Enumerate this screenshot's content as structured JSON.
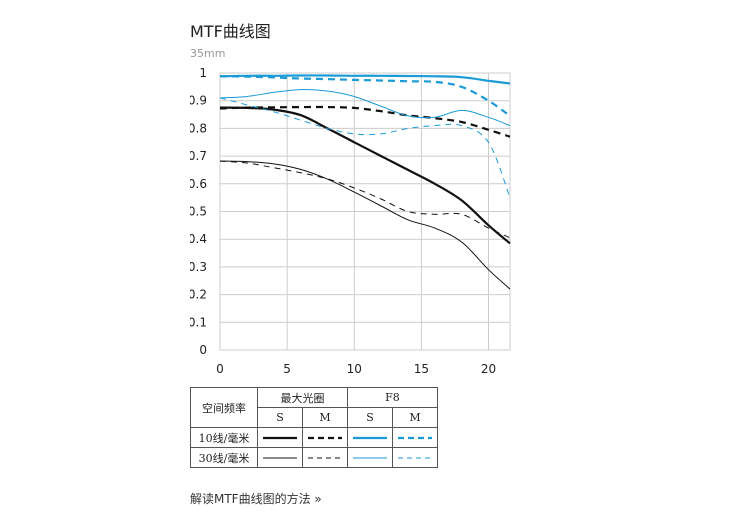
{
  "page": {
    "title": "MTF曲线图",
    "subtitle": "35mm",
    "link_label": "解读MTF曲线图的方法 »"
  },
  "colors": {
    "black_series": "#111111",
    "blue_series": "#1a9ad6",
    "grid": "#cccccc"
  },
  "legend": {
    "spatial_freq_header": "空间频率",
    "max_aperture_header": "最大光圈",
    "f8_header": "F8",
    "s_label": "S",
    "m_label": "M",
    "row_10": "10线/毫米",
    "row_30": "30线/毫米"
  },
  "chart_data": {
    "type": "line",
    "title": "MTF曲线图",
    "subtitle": "35mm",
    "xlabel": "",
    "ylabel": "",
    "xlim": [
      0,
      21.6
    ],
    "ylim": [
      0,
      1
    ],
    "x_ticks": [
      0,
      5,
      10,
      15,
      20
    ],
    "y_ticks": [
      0,
      0.1,
      0.2,
      0.3,
      0.4,
      0.5,
      0.6,
      0.7,
      0.8,
      0.9,
      1
    ],
    "y_tick_labels": [
      "0",
      "0.1",
      "0.2",
      "0.3",
      "0.4",
      "0.5",
      "0.6",
      "0.7",
      "0.8",
      "0.9",
      "1"
    ],
    "grid": true,
    "series": [
      {
        "id": "max-10-s",
        "aperture": "最大光圈",
        "freq": "10线/毫米",
        "dir": "S",
        "color": "#111111",
        "dash": false,
        "thick": true,
        "x": [
          0,
          2,
          4,
          6,
          8,
          10,
          12,
          14,
          16,
          18,
          20,
          21.6
        ],
        "y": [
          0.875,
          0.874,
          0.868,
          0.848,
          0.8,
          0.75,
          0.7,
          0.65,
          0.6,
          0.54,
          0.45,
          0.385
        ]
      },
      {
        "id": "max-10-m",
        "aperture": "最大光圈",
        "freq": "10线/毫米",
        "dir": "M",
        "color": "#111111",
        "dash": true,
        "thick": true,
        "x": [
          0,
          2,
          4,
          6,
          8,
          10,
          12,
          14,
          16,
          18,
          20,
          21.6
        ],
        "y": [
          0.872,
          0.875,
          0.876,
          0.877,
          0.877,
          0.874,
          0.862,
          0.847,
          0.837,
          0.823,
          0.795,
          0.77
        ]
      },
      {
        "id": "f8-10-s",
        "aperture": "F8",
        "freq": "10线/毫米",
        "dir": "S",
        "color": "#1a9ad6",
        "dash": false,
        "thick": true,
        "x": [
          0,
          2,
          4,
          6,
          8,
          10,
          12,
          14,
          16,
          18,
          20,
          21.6
        ],
        "y": [
          0.988,
          0.99,
          0.99,
          0.991,
          0.991,
          0.99,
          0.99,
          0.989,
          0.988,
          0.985,
          0.972,
          0.962
        ]
      },
      {
        "id": "f8-10-m",
        "aperture": "F8",
        "freq": "10线/毫米",
        "dir": "M",
        "color": "#1a9ad6",
        "dash": true,
        "thick": true,
        "x": [
          0,
          2,
          4,
          6,
          8,
          10,
          12,
          14,
          16,
          18,
          20,
          21.6
        ],
        "y": [
          0.988,
          0.987,
          0.984,
          0.98,
          0.978,
          0.975,
          0.973,
          0.97,
          0.968,
          0.95,
          0.9,
          0.845
        ]
      },
      {
        "id": "max-30-s",
        "aperture": "最大光圈",
        "freq": "30线/毫米",
        "dir": "S",
        "color": "#111111",
        "dash": false,
        "thick": false,
        "x": [
          0,
          2,
          4,
          6,
          8,
          10,
          12,
          14,
          16,
          18,
          20,
          21.6
        ],
        "y": [
          0.682,
          0.68,
          0.672,
          0.652,
          0.617,
          0.57,
          0.52,
          0.47,
          0.44,
          0.39,
          0.29,
          0.22
        ]
      },
      {
        "id": "max-30-m",
        "aperture": "最大光圈",
        "freq": "30线/毫米",
        "dir": "M",
        "color": "#111111",
        "dash": true,
        "thick": false,
        "x": [
          0,
          2,
          4,
          6,
          8,
          10,
          12,
          14,
          16,
          18,
          20,
          21.6
        ],
        "y": [
          0.682,
          0.675,
          0.658,
          0.64,
          0.618,
          0.585,
          0.545,
          0.5,
          0.49,
          0.49,
          0.44,
          0.405
        ]
      },
      {
        "id": "f8-30-s",
        "aperture": "F8",
        "freq": "30线/毫米",
        "dir": "S",
        "color": "#1a9ad6",
        "dash": false,
        "thick": false,
        "x": [
          0,
          2,
          4,
          6,
          8,
          10,
          12,
          14,
          16,
          18,
          20,
          21.6
        ],
        "y": [
          0.91,
          0.915,
          0.93,
          0.94,
          0.935,
          0.915,
          0.88,
          0.845,
          0.84,
          0.865,
          0.84,
          0.81
        ]
      },
      {
        "id": "f8-30-m",
        "aperture": "F8",
        "freq": "30线/毫米",
        "dir": "M",
        "color": "#1a9ad6",
        "dash": true,
        "thick": false,
        "x": [
          0,
          2,
          4,
          6,
          8,
          10,
          12,
          14,
          16,
          18,
          20,
          21.6
        ],
        "y": [
          0.91,
          0.885,
          0.86,
          0.83,
          0.8,
          0.78,
          0.78,
          0.8,
          0.81,
          0.81,
          0.75,
          0.55
        ]
      }
    ]
  }
}
